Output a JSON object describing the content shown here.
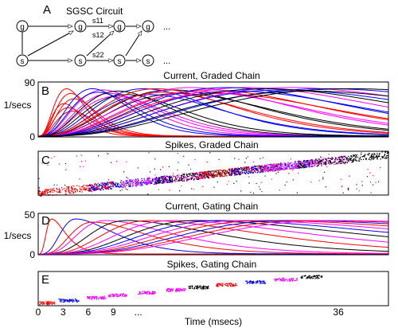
{
  "circuit": {
    "letter": "A",
    "title": "SGSC Circuit",
    "node_g": "g",
    "node_s": "s",
    "label_s11": "s11",
    "label_s12": "s12",
    "label_s22": "s22",
    "ellipsis": "..."
  },
  "chart_data": [
    {
      "letter": "B",
      "type": "line",
      "title": "Current, Graded Chain",
      "ylabel": "1/secs",
      "ylim": [
        0,
        90
      ],
      "yticks": [
        0,
        90
      ],
      "xlim": [
        0,
        42
      ],
      "colors": [
        "#ff0000",
        "#0000ff",
        "#ff00ff",
        "#000000"
      ],
      "series": [
        {
          "color": "#ff0000",
          "peaks_t": [
            3.4,
            3.9,
            4.3
          ],
          "amplitudes": [
            80,
            72,
            63
          ]
        },
        {
          "color": "#ff0000",
          "peaks_t": [
            3.1,
            3.6,
            4.1
          ],
          "amplitudes": [
            55,
            48,
            42
          ]
        },
        {
          "color": "#ff00ff",
          "peaks_t": [
            7.8,
            8.6,
            9.3
          ],
          "amplitudes": [
            78,
            72,
            67
          ]
        },
        {
          "color": "#0000ff",
          "peaks_t": [
            6.5,
            7.2,
            12.7,
            13.4
          ],
          "amplitudes": [
            80,
            74,
            80,
            70
          ]
        },
        {
          "color": "#000000",
          "peaks_t": [
            9.6,
            10.6,
            16.1,
            17.0
          ],
          "amplitudes": [
            76,
            70,
            78,
            72
          ]
        },
        {
          "color": "#ff0000",
          "peaks_t": [
            14.2,
            15.0,
            20.6,
            21.6
          ],
          "amplitudes": [
            80,
            74,
            78,
            72
          ]
        },
        {
          "color": "#ff00ff",
          "peaks_t": [
            18.3,
            19.4,
            25.0,
            30.2
          ],
          "amplitudes": [
            82,
            75,
            82,
            82
          ]
        },
        {
          "color": "#0000ff",
          "peaks_t": [
            22.6,
            23.8,
            29.3,
            34.5
          ],
          "amplitudes": [
            82,
            76,
            78,
            80
          ]
        },
        {
          "color": "#000000",
          "peaks_t": [
            27.2,
            32.4,
            37.5
          ],
          "amplitudes": [
            80,
            76,
            80
          ]
        }
      ]
    },
    {
      "letter": "C",
      "type": "scatter",
      "title": "Spikes, Graded Chain",
      "xlim": [
        0,
        42
      ],
      "colors": [
        "#ff0000",
        "#0000ff",
        "#ff00ff",
        "#000000"
      ],
      "bands": [
        {
          "t_start": 0,
          "t_end": 9,
          "color": "#ff0000"
        },
        {
          "t_start": 6,
          "t_end": 16,
          "color": "#0000ff"
        },
        {
          "t_start": 10,
          "t_end": 21,
          "color": "#ff00ff"
        },
        {
          "t_start": 14,
          "t_end": 25,
          "color": "#000000"
        },
        {
          "t_start": 19,
          "t_end": 29,
          "color": "#ff0000"
        },
        {
          "t_start": 23,
          "t_end": 33,
          "color": "#0000ff"
        },
        {
          "t_start": 27,
          "t_end": 37,
          "color": "#ff00ff"
        },
        {
          "t_start": 31,
          "t_end": 42,
          "color": "#000000"
        }
      ]
    },
    {
      "letter": "D",
      "type": "line",
      "title": "Current, Gating Chain",
      "ylabel": "1/secs",
      "ylim": [
        0,
        50
      ],
      "yticks": [
        0,
        50
      ],
      "xlim": [
        0,
        42
      ],
      "series": [
        {
          "color": "#ff0000",
          "peak_t": 1.6,
          "amplitude": 44
        },
        {
          "color": "#0000ff",
          "peak_t": 4.5,
          "amplitude": 44
        },
        {
          "color": "#ff0000",
          "peak_t": 6.5,
          "amplitude": 40
        },
        {
          "color": "#ff00ff",
          "peak_t": 8.0,
          "amplitude": 42
        },
        {
          "color": "#000000",
          "peak_t": 10.6,
          "amplitude": 42
        },
        {
          "color": "#ff0000",
          "peak_t": 13.3,
          "amplitude": 42
        },
        {
          "color": "#ff00ff",
          "peak_t": 16.1,
          "amplitude": 42
        },
        {
          "color": "#000000",
          "peak_t": 19.0,
          "amplitude": 42
        },
        {
          "color": "#0000ff",
          "peak_t": 21.7,
          "amplitude": 42
        },
        {
          "color": "#ff00ff",
          "peak_t": 24.3,
          "amplitude": 42
        },
        {
          "color": "#ff0000",
          "peak_t": 27.1,
          "amplitude": 42
        },
        {
          "color": "#0000ff",
          "peak_t": 29.9,
          "amplitude": 42
        },
        {
          "color": "#ff0000",
          "peak_t": 32.7,
          "amplitude": 42
        },
        {
          "color": "#ff00ff",
          "peak_t": 35.5,
          "amplitude": 42
        }
      ]
    },
    {
      "letter": "E",
      "type": "scatter",
      "title": "Spikes, Gating Chain",
      "xlim": [
        0,
        42
      ],
      "xlabel": "Time (msecs)",
      "xticks": [
        "0",
        "3",
        "6",
        "9",
        "...",
        "36"
      ],
      "xtick_values": [
        0,
        3,
        6,
        9,
        12,
        36
      ],
      "clusters": [
        {
          "t_start": 0.0,
          "t_end": 2.0,
          "level": 0,
          "color": "#ff0000"
        },
        {
          "t_start": 2.4,
          "t_end": 4.8,
          "level": 1,
          "color": "#0000ff"
        },
        {
          "t_start": 5.8,
          "t_end": 8.0,
          "level": 2,
          "color": "#ff00ff"
        },
        {
          "t_start": 8.3,
          "t_end": 10.6,
          "level": 3,
          "color": "#ff00ff"
        },
        {
          "t_start": 11.8,
          "t_end": 14.0,
          "level": 4,
          "color": "#ff00ff"
        },
        {
          "t_start": 15.2,
          "t_end": 17.6,
          "level": 5,
          "color": "#ff00ff"
        },
        {
          "t_start": 18.0,
          "t_end": 20.5,
          "level": 6,
          "color": "#000000"
        },
        {
          "t_start": 21.2,
          "t_end": 23.8,
          "level": 7,
          "color": "#ff0000"
        },
        {
          "t_start": 24.8,
          "t_end": 27.2,
          "level": 8,
          "color": "#0000ff"
        },
        {
          "t_start": 28.2,
          "t_end": 31.0,
          "level": 9,
          "color": "#ff00ff"
        },
        {
          "t_start": 31.4,
          "t_end": 34.0,
          "level": 10,
          "color": "#000000"
        }
      ]
    }
  ]
}
